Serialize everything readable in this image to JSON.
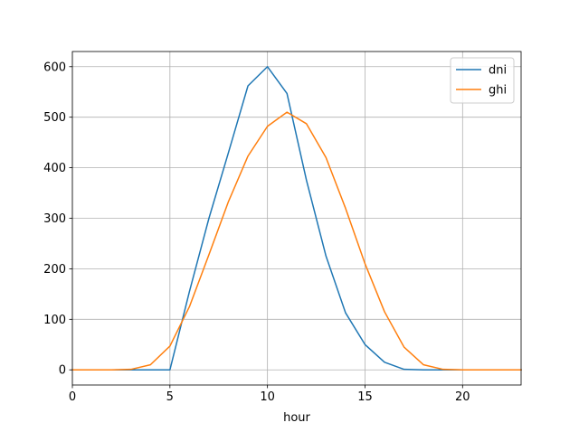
{
  "chart_data": {
    "type": "line",
    "title": "",
    "xlabel": "hour",
    "ylabel": "",
    "xlim": [
      0,
      23
    ],
    "ylim": [
      -30,
      630
    ],
    "x": [
      0,
      1,
      2,
      3,
      4,
      5,
      6,
      7,
      8,
      9,
      10,
      11,
      12,
      13,
      14,
      15,
      16,
      17,
      18,
      19,
      20,
      21,
      22,
      23
    ],
    "xticks": [
      0,
      5,
      10,
      15,
      20
    ],
    "yticks": [
      0,
      100,
      200,
      300,
      400,
      500,
      600
    ],
    "grid": true,
    "legend_position": "top-right",
    "series": [
      {
        "name": "dni",
        "color": "#1f77b4",
        "values": [
          0,
          0,
          0,
          0,
          0,
          0,
          155,
          300,
          430,
          562,
          600,
          547,
          375,
          225,
          113,
          50,
          15,
          1,
          0,
          0,
          0,
          0,
          0,
          0
        ]
      },
      {
        "name": "ghi",
        "color": "#ff7f0e",
        "values": [
          0,
          0,
          0,
          1,
          10,
          47,
          125,
          228,
          333,
          423,
          482,
          510,
          487,
          420,
          320,
          210,
          115,
          45,
          10,
          1,
          0,
          0,
          0,
          0
        ]
      }
    ]
  }
}
